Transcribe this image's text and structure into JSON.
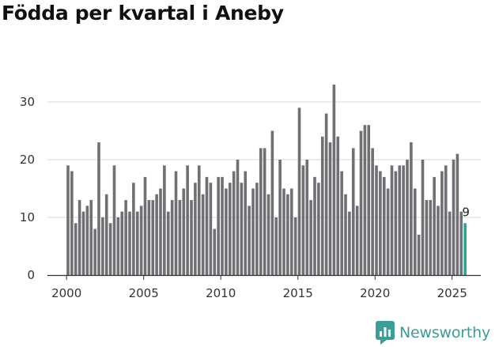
{
  "chart_data": {
    "type": "bar",
    "title": "Födda per kvartal i Aneby",
    "xlabel": "",
    "ylabel": "",
    "ylim": [
      0,
      33
    ],
    "yticks": [
      0,
      10,
      20,
      30
    ],
    "xticks": [
      2000,
      2005,
      2010,
      2015,
      2020,
      2025
    ],
    "start_year": 2000,
    "values": [
      19,
      18,
      9,
      13,
      11,
      12,
      13,
      8,
      23,
      10,
      14,
      9,
      19,
      10,
      11,
      13,
      11,
      16,
      11,
      12,
      17,
      13,
      13,
      14,
      15,
      19,
      11,
      13,
      18,
      13,
      15,
      19,
      13,
      16,
      19,
      14,
      17,
      16,
      8,
      17,
      17,
      15,
      16,
      18,
      20,
      16,
      18,
      12,
      15,
      16,
      22,
      22,
      14,
      25,
      10,
      20,
      15,
      14,
      15,
      10,
      29,
      19,
      20,
      13,
      17,
      16,
      24,
      28,
      23,
      33,
      24,
      18,
      14,
      11,
      22,
      12,
      25,
      26,
      26,
      22,
      19,
      18,
      17,
      15,
      19,
      18,
      19,
      19,
      20,
      23,
      15,
      7,
      20,
      13,
      13,
      17,
      12,
      18,
      19,
      11,
      20,
      21,
      11,
      9
    ],
    "highlight_index": 103,
    "highlight_label": "9",
    "bar_color": "#707074",
    "highlight_color": "#27a39a",
    "grid": true
  },
  "brand": {
    "name": "Newsworthy",
    "color": "#3a9d96"
  }
}
